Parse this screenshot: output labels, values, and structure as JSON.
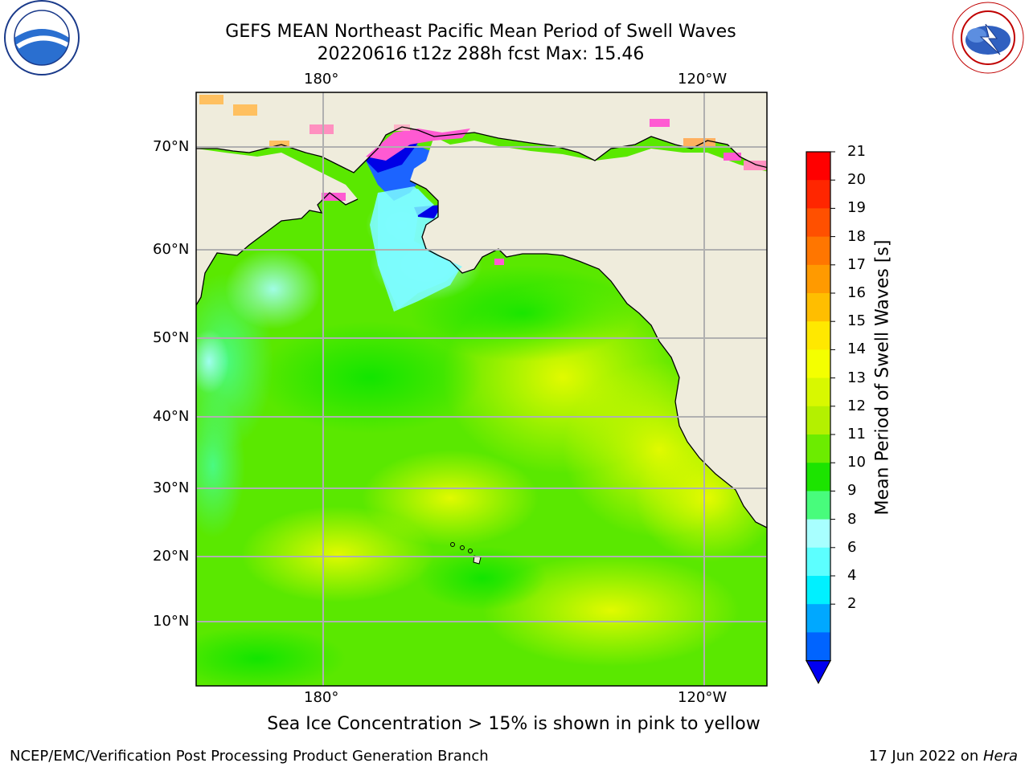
{
  "title_line1": "GEFS MEAN Northeast Pacific Mean Period of Swell Waves",
  "title_line2": "20220616 t12z 288h fcst   Max: 15.46",
  "logos": {
    "left": "NOAA",
    "right": "NATIONAL WEATHER SERVICE"
  },
  "map": {
    "lon_labels": [
      "180°",
      "120°W"
    ],
    "lat_labels": [
      "70°N",
      "60°N",
      "50°N",
      "40°N",
      "30°N",
      "20°N",
      "10°N"
    ],
    "land_color": "#efecdc",
    "grid_color": "#b0b0b0"
  },
  "colorbar": {
    "label": "Mean Period of Swell Waves [s]",
    "ticks": [
      "21",
      "20",
      "19",
      "18",
      "17",
      "16",
      "15",
      "14",
      "13",
      "12",
      "11",
      "10",
      "9",
      "8",
      "6",
      "4",
      "2"
    ],
    "colors": [
      "#ff0000",
      "#ff2600",
      "#ff5000",
      "#ff7600",
      "#ff9a00",
      "#ffbe00",
      "#ffe800",
      "#f4ff00",
      "#d8f800",
      "#b4f000",
      "#6cec00",
      "#1ce400",
      "#48fc7c",
      "#a8ffff",
      "#5cffff",
      "#00f0ff",
      "#00a8ff",
      "#0064ff"
    ],
    "extend_color": "#0000f0"
  },
  "note": "Sea Ice Concentration > 15% is shown in pink to yellow",
  "footer_left": "NCEP/EMC/Verification Post Processing Product Generation Branch",
  "footer_date": "17 Jun 2022 on ",
  "footer_host": "Hera"
}
